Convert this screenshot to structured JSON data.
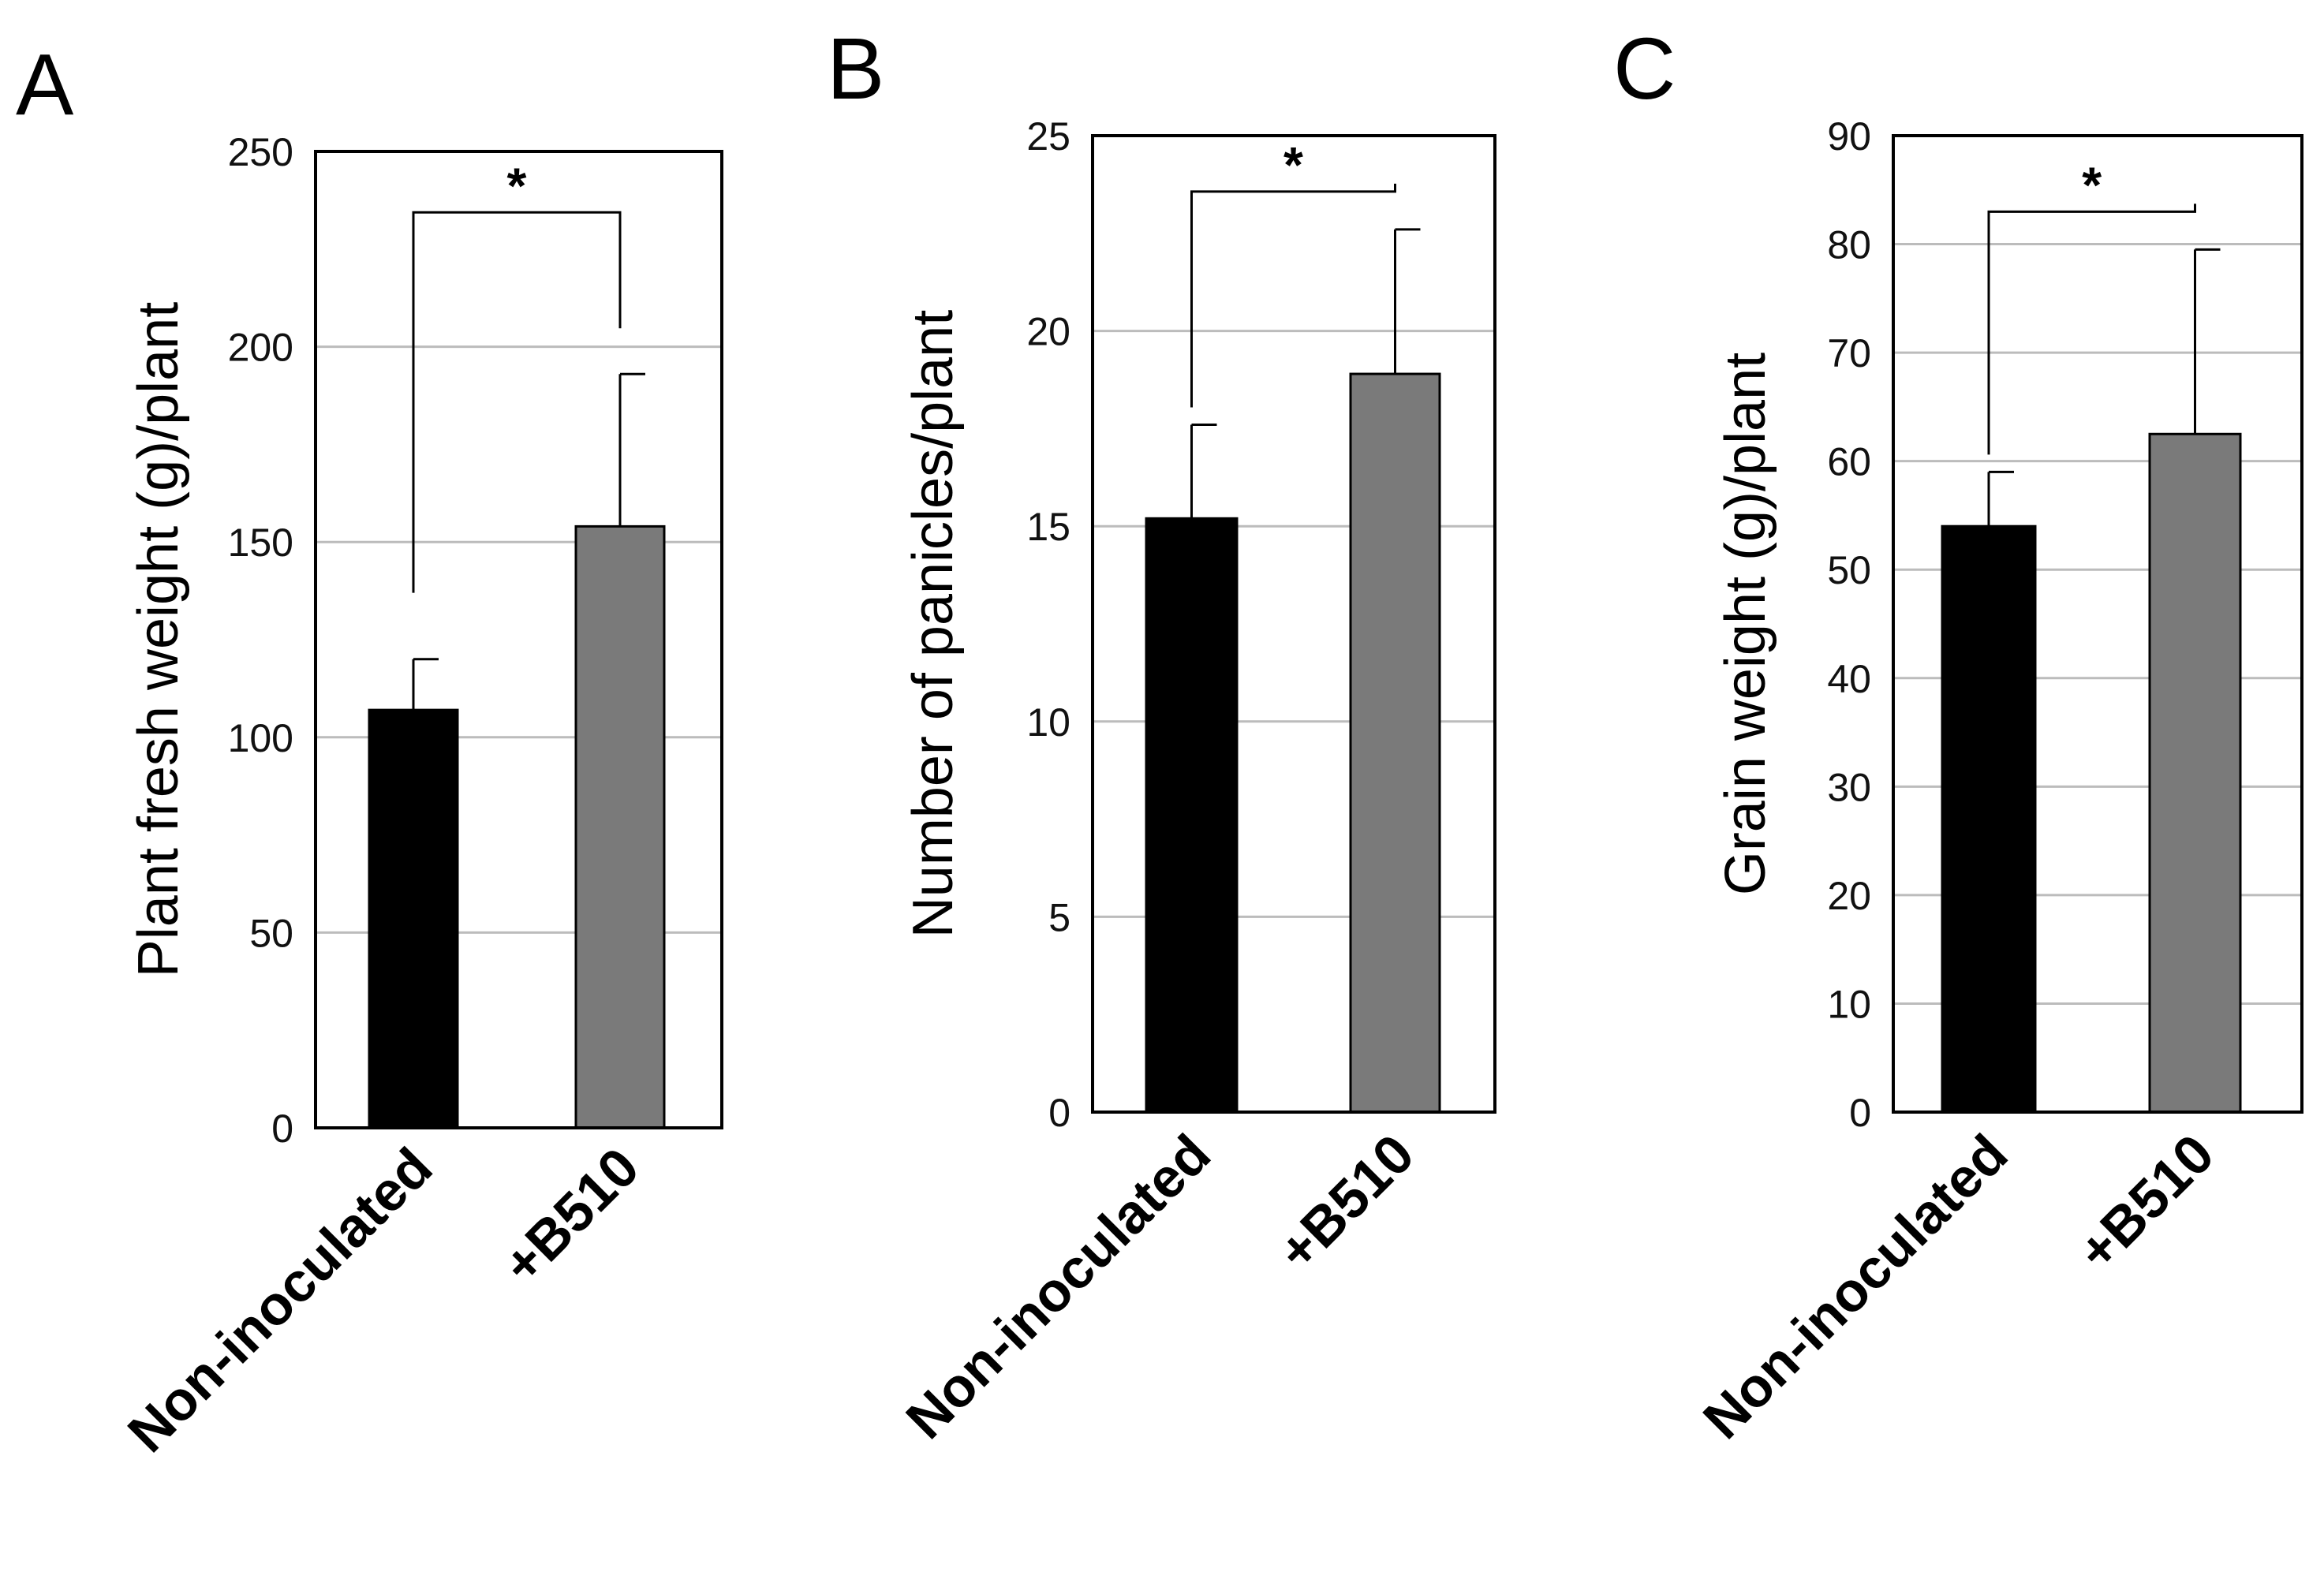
{
  "figure": {
    "colors": {
      "bar_control": "#000000",
      "bar_treated": "#7a7a7a",
      "grid": "#bcbcbc",
      "axis": "#000000"
    }
  },
  "chart_data": [
    {
      "type": "bar",
      "panel_label": "A",
      "title": "",
      "xlabel": "",
      "ylabel": "Plant fresh weight (g)/plant",
      "categories": [
        "Non-inoculated",
        "+B510"
      ],
      "values": [
        107,
        154
      ],
      "errors": [
        13,
        39
      ],
      "ylim": [
        0,
        250
      ],
      "yticks": [
        "0",
        "50",
        "100",
        "150",
        "200",
        "250"
      ],
      "grid": true,
      "significance": {
        "between": [
          0,
          1
        ],
        "label": "*"
      }
    },
    {
      "type": "bar",
      "panel_label": "B",
      "title": "",
      "xlabel": "",
      "ylabel": "Number of panicles/plant",
      "categories": [
        "Non-inoculated",
        "+B510"
      ],
      "values": [
        15.2,
        18.9
      ],
      "errors": [
        2.4,
        3.7
      ],
      "ylim": [
        0,
        25
      ],
      "yticks": [
        "0",
        "5",
        "10",
        "15",
        "20",
        "25"
      ],
      "grid": true,
      "significance": {
        "between": [
          0,
          1
        ],
        "label": "*"
      }
    },
    {
      "type": "bar",
      "panel_label": "C",
      "title": "",
      "xlabel": "",
      "ylabel": "Grain weight (g)/plant",
      "categories": [
        "Non-inoculated",
        "+B510"
      ],
      "values": [
        54,
        62.5
      ],
      "errors": [
        5,
        17
      ],
      "ylim": [
        0,
        90
      ],
      "yticks": [
        "0",
        "10",
        "20",
        "30",
        "40",
        "50",
        "60",
        "70",
        "80",
        "90"
      ],
      "grid": true,
      "significance": {
        "between": [
          0,
          1
        ],
        "label": "*"
      }
    }
  ]
}
